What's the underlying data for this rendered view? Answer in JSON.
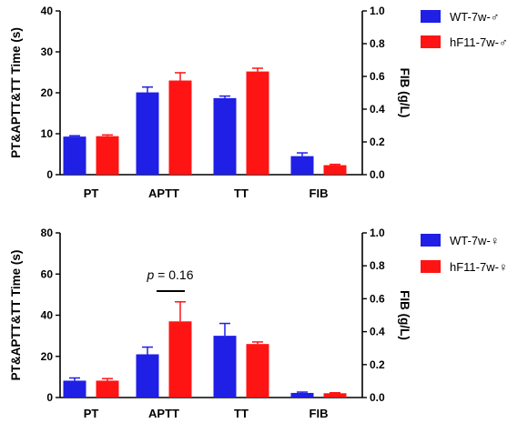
{
  "chart_data": [
    {
      "type": "bar",
      "categories": [
        "PT",
        "APTT",
        "TT",
        "FIB"
      ],
      "ylabel": "PT&APTT&TT Time (s)",
      "y2label": "FIB (g/L)",
      "ylim": [
        0,
        40
      ],
      "y2lim": [
        0,
        1.0
      ],
      "yticks": [
        0,
        10,
        20,
        30,
        40
      ],
      "y2ticks": [
        "0.0",
        "0.2",
        "0.4",
        "0.6",
        "0.8",
        "1.0"
      ],
      "series": [
        {
          "name": "WT-7w-♂",
          "color": "#1f1fe6",
          "values": [
            9.3,
            20.1,
            18.7,
            0.113
          ],
          "errors": [
            0.2,
            1.3,
            0.5,
            0.02
          ]
        },
        {
          "name": "hF11-7w-♂",
          "color": "#ff1414",
          "values": [
            9.4,
            23.0,
            25.2,
            0.058
          ],
          "errors": [
            0.3,
            1.9,
            0.8,
            0.005
          ]
        }
      ],
      "annotation": null
    },
    {
      "type": "bar",
      "categories": [
        "PT",
        "APTT",
        "TT",
        "FIB"
      ],
      "ylabel": "PT&APTT&TT Time (s)",
      "y2label": "FIB (g/L)",
      "ylim": [
        0,
        80
      ],
      "y2lim": [
        0,
        1.0
      ],
      "yticks": [
        0,
        20,
        40,
        60,
        80
      ],
      "y2ticks": [
        "0.0",
        "0.2",
        "0.4",
        "0.6",
        "0.8",
        "1.0"
      ],
      "series": [
        {
          "name": "WT-7w-♀",
          "color": "#1f1fe6",
          "values": [
            8.2,
            21.0,
            30.0,
            0.028
          ],
          "errors": [
            1.3,
            3.5,
            6.0,
            0.005
          ]
        },
        {
          "name": "hF11-7w-♀",
          "color": "#ff1414",
          "values": [
            8.2,
            37.0,
            26.0,
            0.026
          ],
          "errors": [
            1.0,
            9.5,
            1.0,
            0.003
          ]
        }
      ],
      "annotation": {
        "p_italic": "p",
        "rest": " = 0.16"
      }
    }
  ]
}
